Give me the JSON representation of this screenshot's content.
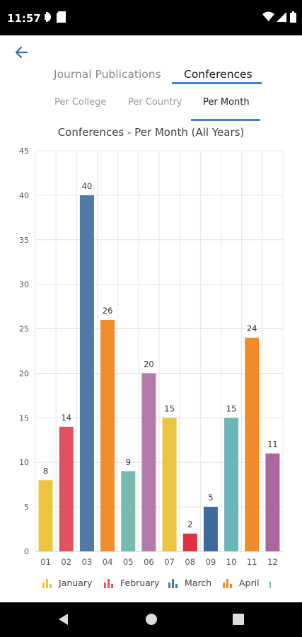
{
  "status_bar": {
    "time": "11:57"
  },
  "tabs": {
    "journal": "Journal Publications",
    "conferences": "Conferences",
    "active": "conferences"
  },
  "subtabs": {
    "per_college": "Per College",
    "per_country": "Per Country",
    "per_month": "Per Month",
    "active": "per_month"
  },
  "chart_data": {
    "type": "bar",
    "title": "Conferences - Per Month (All Years)",
    "categories": [
      "01",
      "02",
      "03",
      "04",
      "05",
      "06",
      "07",
      "08",
      "09",
      "10",
      "11",
      "12"
    ],
    "values": [
      8,
      14,
      40,
      26,
      9,
      20,
      15,
      2,
      5,
      15,
      24,
      11
    ],
    "colors": [
      "#ecc540",
      "#e0525f",
      "#4f79a6",
      "#f18d2c",
      "#78b9b2",
      "#b47ba8",
      "#ecc540",
      "#e0323c",
      "#3e6aa0",
      "#6bb7b8",
      "#f28b27",
      "#ab659f"
    ],
    "ylim": [
      0,
      45
    ],
    "yticks": [
      0,
      5,
      10,
      15,
      20,
      25,
      30,
      35,
      40,
      45
    ],
    "grid": true,
    "xlabel": "",
    "ylabel": "",
    "legend_position": "bottom",
    "legend": [
      {
        "label": "January",
        "color": "#ecc540"
      },
      {
        "label": "February",
        "color": "#e0525f"
      },
      {
        "label": "March",
        "color": "#4f79a6"
      },
      {
        "label": "April",
        "color": "#f18d2c"
      }
    ]
  }
}
